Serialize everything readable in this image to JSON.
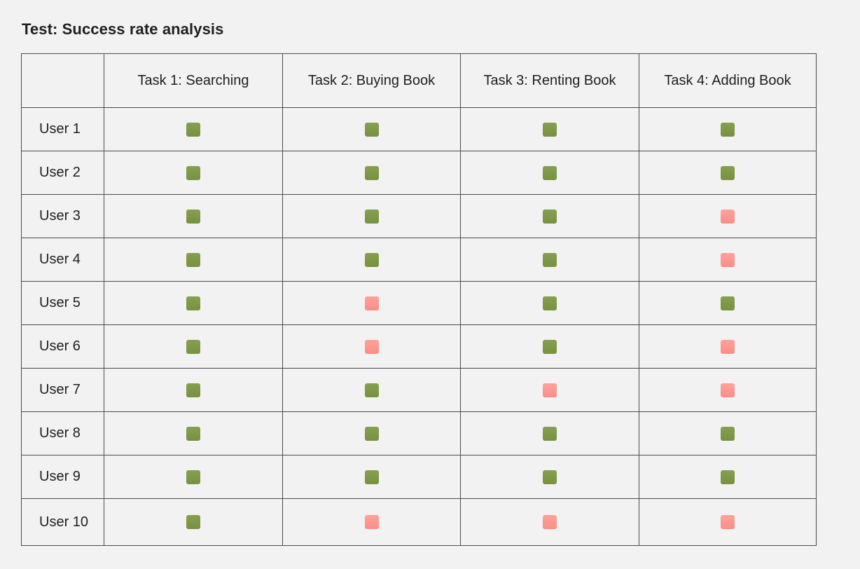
{
  "title": "Test: Success rate analysis",
  "colors": {
    "success": "#7b9646",
    "fail": "#fc9890",
    "border": "#4a4a4a",
    "background": "#f2f2f2"
  },
  "columns": [
    "",
    "Task 1: Searching",
    "Task 2: Buying Book",
    "Task 3: Renting Book",
    "Task 4: Adding Book"
  ],
  "rows": [
    {
      "user": "User 1",
      "results": [
        "success",
        "success",
        "success",
        "success"
      ]
    },
    {
      "user": "User 2",
      "results": [
        "success",
        "success",
        "success",
        "success"
      ]
    },
    {
      "user": "User 3",
      "results": [
        "success",
        "success",
        "success",
        "fail"
      ]
    },
    {
      "user": "User 4",
      "results": [
        "success",
        "success",
        "success",
        "fail"
      ]
    },
    {
      "user": "User 5",
      "results": [
        "success",
        "fail",
        "success",
        "success"
      ]
    },
    {
      "user": "User 6",
      "results": [
        "success",
        "fail",
        "success",
        "fail"
      ]
    },
    {
      "user": "User 7",
      "results": [
        "success",
        "success",
        "fail",
        "fail"
      ]
    },
    {
      "user": "User 8",
      "results": [
        "success",
        "success",
        "success",
        "success"
      ]
    },
    {
      "user": "User 9",
      "results": [
        "success",
        "success",
        "success",
        "success"
      ]
    },
    {
      "user": "User 10",
      "results": [
        "success",
        "fail",
        "fail",
        "fail"
      ]
    }
  ]
}
